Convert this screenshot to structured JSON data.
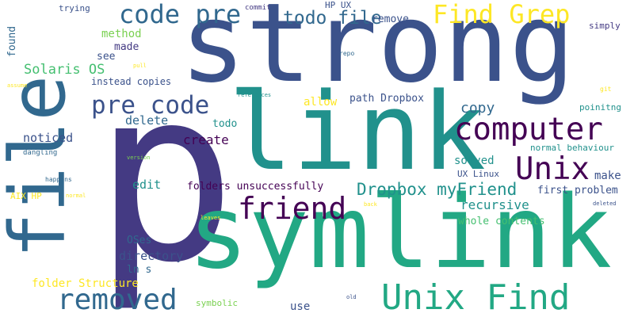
{
  "colors": {
    "dark_purple": "#440154",
    "indigo": "#443a83",
    "blue": "#3b528b",
    "slate": "#31688e",
    "teal": "#21918c",
    "green_teal": "#22a884",
    "green": "#44bf70",
    "lime": "#7ad151",
    "yellow": "#fde725"
  },
  "words": [
    {
      "text": "p"
    },
    {
      "text": "strong"
    },
    {
      "text": "file"
    },
    {
      "text": "link"
    },
    {
      "text": "symlink"
    },
    {
      "text": "code pre"
    },
    {
      "text": "Find Grep"
    },
    {
      "text": "todo file"
    },
    {
      "text": "pre code"
    },
    {
      "text": "computer"
    },
    {
      "text": "Unix"
    },
    {
      "text": "friend"
    },
    {
      "text": "Dropbox myFriend"
    },
    {
      "text": "removed"
    },
    {
      "text": "Unix Find"
    },
    {
      "text": "Solaris OS"
    },
    {
      "text": "method"
    },
    {
      "text": "made"
    },
    {
      "text": "see"
    },
    {
      "text": "instead copies"
    },
    {
      "text": "allow"
    },
    {
      "text": "path Dropbox"
    },
    {
      "text": "copy"
    },
    {
      "text": "delete"
    },
    {
      "text": "todo"
    },
    {
      "text": "create"
    },
    {
      "text": "noticed"
    },
    {
      "text": "solved"
    },
    {
      "text": "make"
    },
    {
      "text": "edit"
    },
    {
      "text": "folders unsuccessfully"
    },
    {
      "text": "first problem"
    },
    {
      "text": "recursive"
    },
    {
      "text": "whole contents"
    },
    {
      "text": "OSes"
    },
    {
      "text": "directory"
    },
    {
      "text": "ln s"
    },
    {
      "text": "folder Structure"
    },
    {
      "text": "use"
    },
    {
      "text": "symbolic"
    },
    {
      "text": "remove"
    },
    {
      "text": "HP UX"
    },
    {
      "text": "commit"
    },
    {
      "text": "simply"
    },
    {
      "text": "trying"
    },
    {
      "text": "found"
    },
    {
      "text": "repo"
    },
    {
      "text": "pull"
    },
    {
      "text": "assume"
    },
    {
      "text": "references"
    },
    {
      "text": "git"
    },
    {
      "text": "poinitng"
    },
    {
      "text": "normal behaviour"
    },
    {
      "text": "UX Linux"
    },
    {
      "text": "AIX HP"
    },
    {
      "text": "dangling"
    },
    {
      "text": "happens"
    },
    {
      "text": "version"
    },
    {
      "text": "normal"
    },
    {
      "text": "leaves"
    },
    {
      "text": "back"
    },
    {
      "text": "deleted"
    },
    {
      "text": "old"
    }
  ]
}
